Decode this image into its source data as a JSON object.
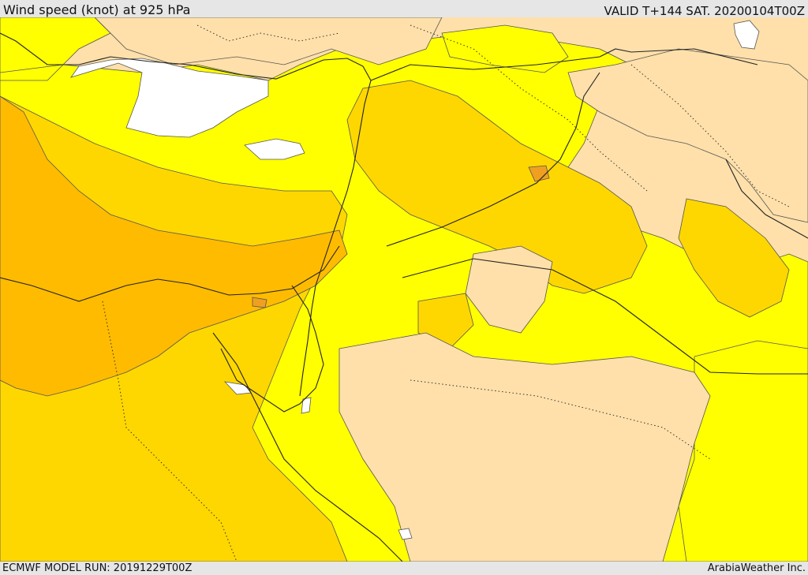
{
  "header": {
    "title": "Wind speed (knot) at 925 hPa",
    "valid": "VALID T+144 SAT. 20200104T00Z"
  },
  "footer": {
    "model_run": "ECMWF MODEL RUN: 20191229T00Z",
    "credit": "ArabiaWeather Inc."
  },
  "map": {
    "colors": {
      "calm": "#ffffff",
      "light": "#ffe0aa",
      "moderate": "#ffff00",
      "fresh": "#ffd700",
      "strong": "#ffbb00",
      "gale": "#f0a020"
    }
  }
}
